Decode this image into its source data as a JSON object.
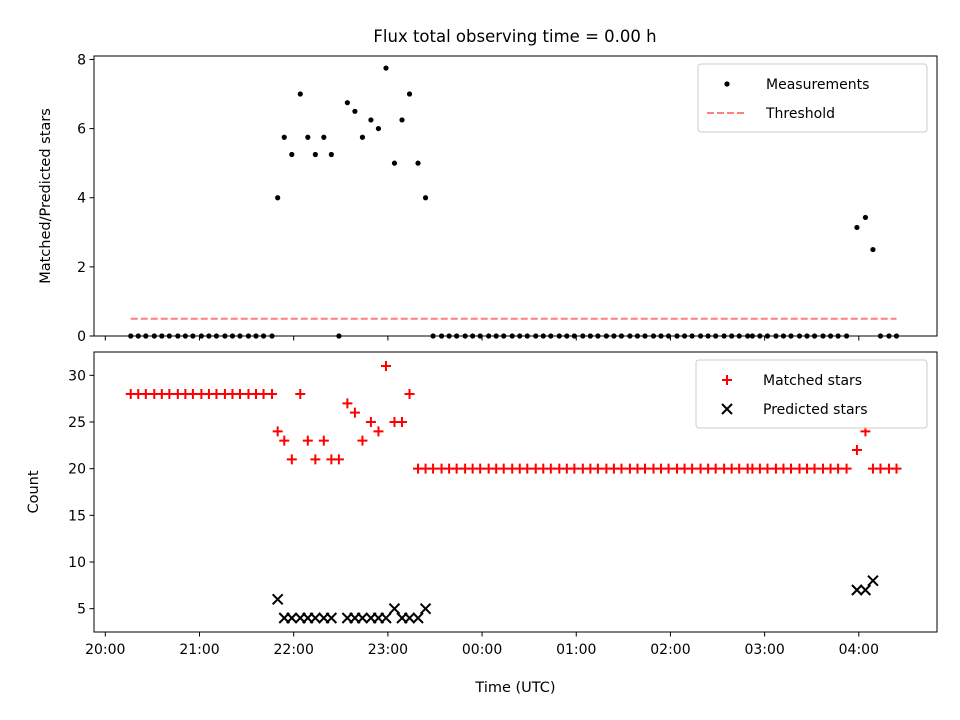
{
  "title": "Flux total observing time = 0.00 h",
  "colors": {
    "measurement": "#000000",
    "threshold": "#ff7f7f",
    "matched": "#ff0000",
    "predicted": "#000000"
  },
  "chart_data": [
    {
      "type": "scatter",
      "ylabel": "Matched/Predicted stars",
      "ylim": [
        0,
        8.1
      ],
      "yticks": [
        0,
        2,
        4,
        6,
        8
      ],
      "xlim_hours": [
        19.88,
        28.83
      ],
      "legend": {
        "placement": "top-right",
        "entries": [
          "Measurements",
          "Threshold"
        ]
      },
      "threshold": {
        "name": "Threshold",
        "value": 0.5,
        "x_range": [
          20.27,
          28.4
        ]
      },
      "series": [
        {
          "name": "Measurements",
          "x": [
            20.27,
            20.35,
            20.43,
            20.52,
            20.6,
            20.68,
            20.77,
            20.85,
            20.93,
            21.02,
            21.1,
            21.18,
            21.27,
            21.35,
            21.43,
            21.52,
            21.6,
            21.68,
            21.77,
            21.83,
            21.9,
            21.98,
            22.07,
            22.15,
            22.23,
            22.32,
            22.4,
            22.48,
            22.57,
            22.65,
            22.73,
            22.82,
            22.9,
            22.98,
            23.07,
            23.15,
            23.23,
            23.32,
            23.4,
            23.48,
            23.57,
            23.65,
            23.73,
            23.82,
            23.9,
            23.98,
            24.07,
            24.15,
            24.23,
            24.32,
            24.4,
            24.48,
            24.57,
            24.65,
            24.73,
            24.82,
            24.9,
            24.98,
            25.07,
            25.15,
            25.23,
            25.32,
            25.4,
            25.48,
            25.57,
            25.65,
            25.73,
            25.82,
            25.9,
            25.98,
            26.07,
            26.15,
            26.23,
            26.32,
            26.4,
            26.48,
            26.57,
            26.65,
            26.73,
            26.82,
            26.87,
            26.95,
            27.03,
            27.12,
            27.2,
            27.28,
            27.37,
            27.45,
            27.53,
            27.62,
            27.7,
            27.78,
            27.87,
            27.98,
            28.07,
            28.15,
            28.23,
            28.32,
            28.4
          ],
          "y": [
            0,
            0,
            0,
            0,
            0,
            0,
            0,
            0,
            0,
            0,
            0,
            0,
            0,
            0,
            0,
            0,
            0,
            0,
            0,
            4,
            5.75,
            5.25,
            7,
            5.75,
            5.25,
            5.75,
            5.25,
            0,
            6.75,
            6.5,
            5.75,
            6.25,
            6,
            7.75,
            5,
            6.25,
            7,
            5,
            4,
            0,
            0,
            0,
            0,
            0,
            0,
            0,
            0,
            0,
            0,
            0,
            0,
            0,
            0,
            0,
            0,
            0,
            0,
            0,
            0,
            0,
            0,
            0,
            0,
            0,
            0,
            0,
            0,
            0,
            0,
            0,
            0,
            0,
            0,
            0,
            0,
            0,
            0,
            0,
            0,
            0,
            0,
            0,
            0,
            0,
            0,
            0,
            0,
            0,
            0,
            0,
            0,
            0,
            0,
            3.14,
            3.43,
            2.5,
            0,
            0,
            0
          ]
        }
      ]
    },
    {
      "type": "scatter",
      "xlabel": "Time (UTC)",
      "ylabel": "Count",
      "ylim": [
        2.5,
        32.5
      ],
      "yticks": [
        5,
        10,
        15,
        20,
        25,
        30
      ],
      "xlim_hours": [
        19.88,
        28.83
      ],
      "xticks": [
        "20:00",
        "21:00",
        "22:00",
        "23:00",
        "00:00",
        "01:00",
        "02:00",
        "03:00",
        "04:00"
      ],
      "legend": {
        "placement": "top-right",
        "entries": [
          "Matched stars",
          "Predicted stars"
        ]
      },
      "series": [
        {
          "name": "Matched stars",
          "marker": "+",
          "x": [
            20.27,
            20.35,
            20.43,
            20.52,
            20.6,
            20.68,
            20.77,
            20.85,
            20.93,
            21.02,
            21.1,
            21.18,
            21.27,
            21.35,
            21.43,
            21.52,
            21.6,
            21.68,
            21.77,
            21.83,
            21.9,
            21.98,
            22.07,
            22.15,
            22.23,
            22.32,
            22.4,
            22.48,
            22.57,
            22.65,
            22.73,
            22.82,
            22.9,
            22.98,
            23.07,
            23.15,
            23.23,
            23.32,
            23.4,
            23.48,
            23.57,
            23.65,
            23.73,
            23.82,
            23.9,
            23.98,
            24.07,
            24.15,
            24.23,
            24.32,
            24.4,
            24.48,
            24.57,
            24.65,
            24.73,
            24.82,
            24.9,
            24.98,
            25.07,
            25.15,
            25.23,
            25.32,
            25.4,
            25.48,
            25.57,
            25.65,
            25.73,
            25.82,
            25.9,
            25.98,
            26.07,
            26.15,
            26.23,
            26.32,
            26.4,
            26.48,
            26.57,
            26.65,
            26.73,
            26.82,
            26.87,
            26.95,
            27.03,
            27.12,
            27.2,
            27.28,
            27.37,
            27.45,
            27.53,
            27.62,
            27.7,
            27.78,
            27.87,
            27.98,
            28.07,
            28.15,
            28.23,
            28.32,
            28.4
          ],
          "y": [
            28,
            28,
            28,
            28,
            28,
            28,
            28,
            28,
            28,
            28,
            28,
            28,
            28,
            28,
            28,
            28,
            28,
            28,
            28,
            24,
            23,
            21,
            28,
            23,
            21,
            23,
            21,
            21,
            27,
            26,
            23,
            25,
            24,
            31,
            25,
            25,
            28,
            20,
            20,
            20,
            20,
            20,
            20,
            20,
            20,
            20,
            20,
            20,
            20,
            20,
            20,
            20,
            20,
            20,
            20,
            20,
            20,
            20,
            20,
            20,
            20,
            20,
            20,
            20,
            20,
            20,
            20,
            20,
            20,
            20,
            20,
            20,
            20,
            20,
            20,
            20,
            20,
            20,
            20,
            20,
            20,
            20,
            20,
            20,
            20,
            20,
            20,
            20,
            20,
            20,
            20,
            20,
            20,
            22,
            24,
            20,
            20,
            20,
            20
          ]
        },
        {
          "name": "Predicted stars",
          "marker": "x",
          "x": [
            21.83,
            21.9,
            21.98,
            22.07,
            22.15,
            22.23,
            22.32,
            22.4,
            22.57,
            22.65,
            22.73,
            22.82,
            22.9,
            22.98,
            23.07,
            23.15,
            23.23,
            23.32,
            23.4,
            27.98,
            28.07,
            28.15
          ],
          "y": [
            6,
            4,
            4,
            4,
            4,
            4,
            4,
            4,
            4,
            4,
            4,
            4,
            4,
            4,
            5,
            4,
            4,
            4,
            5,
            7,
            7,
            8
          ]
        }
      ]
    }
  ]
}
